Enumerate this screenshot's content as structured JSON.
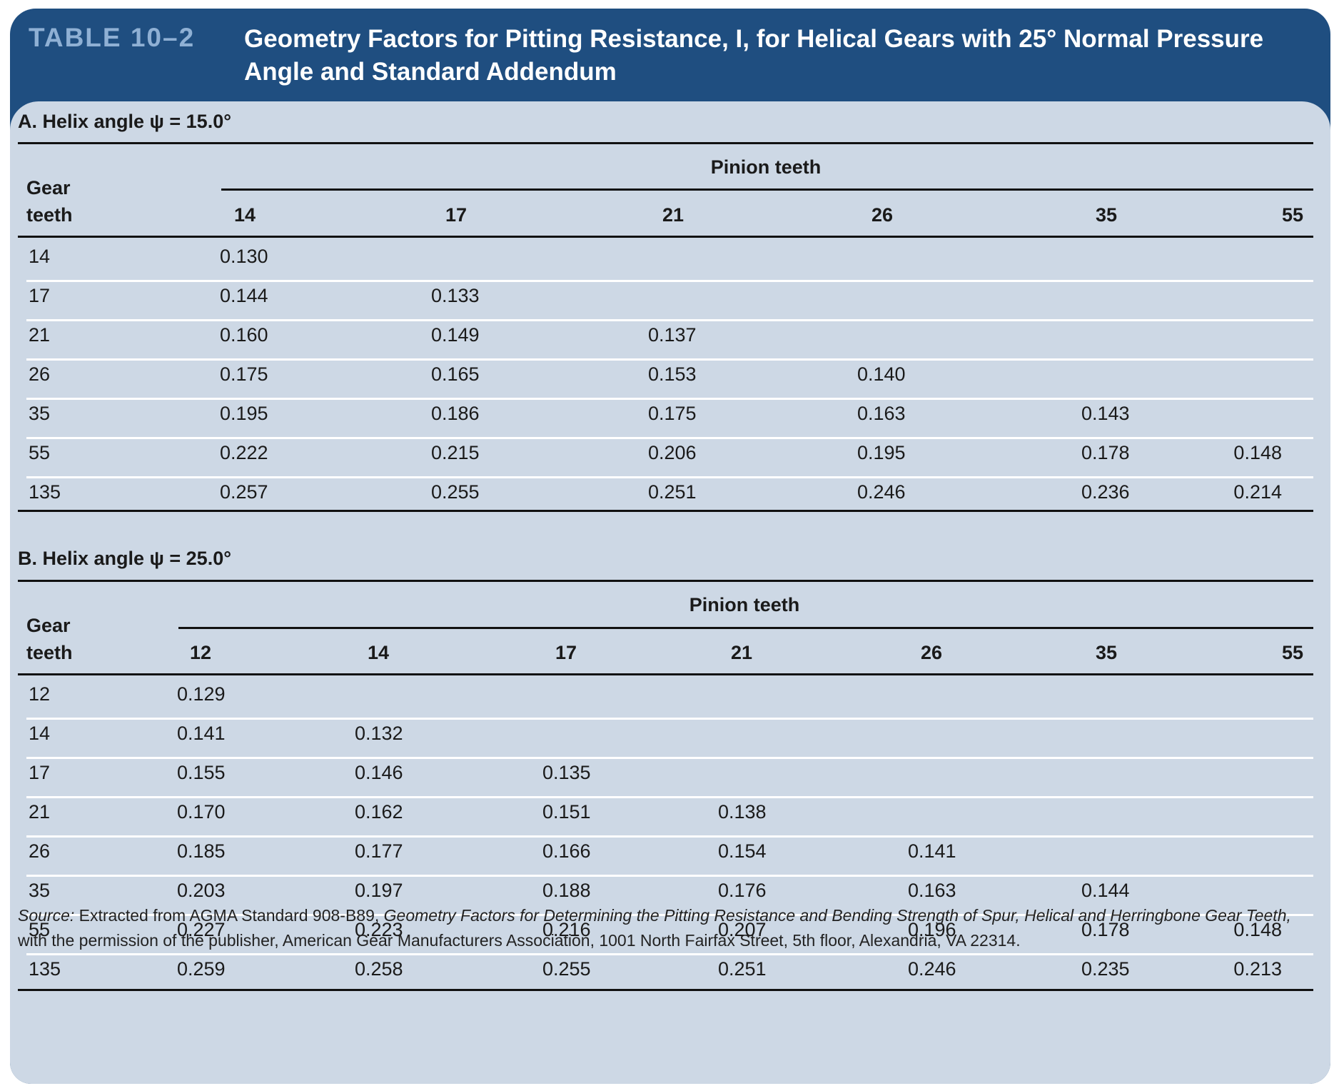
{
  "title": {
    "label": "TABLE 10–2",
    "text": "Geometry Factors for Pitting Resistance, I, for Helical Gears with 25° Normal Pressure Angle and Standard Addendum"
  },
  "sections": [
    {
      "heading": "A. Helix angle ψ = 15.0°",
      "gear_header": [
        "Gear",
        "teeth"
      ],
      "group_header": "Pinion teeth",
      "pinion_teeth": [
        "14",
        "17",
        "21",
        "26",
        "35",
        "55"
      ],
      "rows": [
        {
          "gear": "14",
          "values": [
            "0.130",
            "",
            "",
            "",
            "",
            ""
          ]
        },
        {
          "gear": "17",
          "values": [
            "0.144",
            "0.133",
            "",
            "",
            "",
            ""
          ]
        },
        {
          "gear": "21",
          "values": [
            "0.160",
            "0.149",
            "0.137",
            "",
            "",
            ""
          ]
        },
        {
          "gear": "26",
          "values": [
            "0.175",
            "0.165",
            "0.153",
            "0.140",
            "",
            ""
          ]
        },
        {
          "gear": "35",
          "values": [
            "0.195",
            "0.186",
            "0.175",
            "0.163",
            "0.143",
            ""
          ]
        },
        {
          "gear": "55",
          "values": [
            "0.222",
            "0.215",
            "0.206",
            "0.195",
            "0.178",
            "0.148"
          ]
        },
        {
          "gear": "135",
          "values": [
            "0.257",
            "0.255",
            "0.251",
            "0.246",
            "0.236",
            "0.214"
          ]
        }
      ]
    },
    {
      "heading": "B. Helix angle ψ = 25.0°",
      "gear_header": [
        "Gear",
        "teeth"
      ],
      "group_header": "Pinion teeth",
      "pinion_teeth": [
        "12",
        "14",
        "17",
        "21",
        "26",
        "35",
        "55"
      ],
      "rows": [
        {
          "gear": "12",
          "values": [
            "0.129",
            "",
            "",
            "",
            "",
            "",
            ""
          ]
        },
        {
          "gear": "14",
          "values": [
            "0.141",
            "0.132",
            "",
            "",
            "",
            "",
            ""
          ]
        },
        {
          "gear": "17",
          "values": [
            "0.155",
            "0.146",
            "0.135",
            "",
            "",
            "",
            ""
          ]
        },
        {
          "gear": "21",
          "values": [
            "0.170",
            "0.162",
            "0.151",
            "0.138",
            "",
            "",
            ""
          ]
        },
        {
          "gear": "26",
          "values": [
            "0.185",
            "0.177",
            "0.166",
            "0.154",
            "0.141",
            "",
            ""
          ]
        },
        {
          "gear": "35",
          "values": [
            "0.203",
            "0.197",
            "0.188",
            "0.176",
            "0.163",
            "0.144",
            ""
          ]
        },
        {
          "gear": "55",
          "values": [
            "0.227",
            "0.223",
            "0.216",
            "0.207",
            "0.196",
            "0.178",
            "0.148"
          ]
        },
        {
          "gear": "135",
          "values": [
            "0.259",
            "0.258",
            "0.255",
            "0.251",
            "0.246",
            "0.235",
            "0.213"
          ]
        }
      ]
    }
  ],
  "source": {
    "label": "Source:",
    "text1": " Extracted from AGMA Standard 908-B89, ",
    "italic": "Geometry Factors for Determining the Pitting Resistance and Bending Strength of Spur, Helical and Herringbone Gear Teeth,",
    "text2": " with the permission of the publisher, American Gear Manufacturers Association, 1001 North Fairfax Street, 5th floor, Alexandria, VA 22314."
  },
  "colors": {
    "header_bg": "#1f4e80",
    "table_label": "#8fb0d4",
    "panel_bg": "#cdd8e5",
    "row_separator": "#ffffff"
  }
}
